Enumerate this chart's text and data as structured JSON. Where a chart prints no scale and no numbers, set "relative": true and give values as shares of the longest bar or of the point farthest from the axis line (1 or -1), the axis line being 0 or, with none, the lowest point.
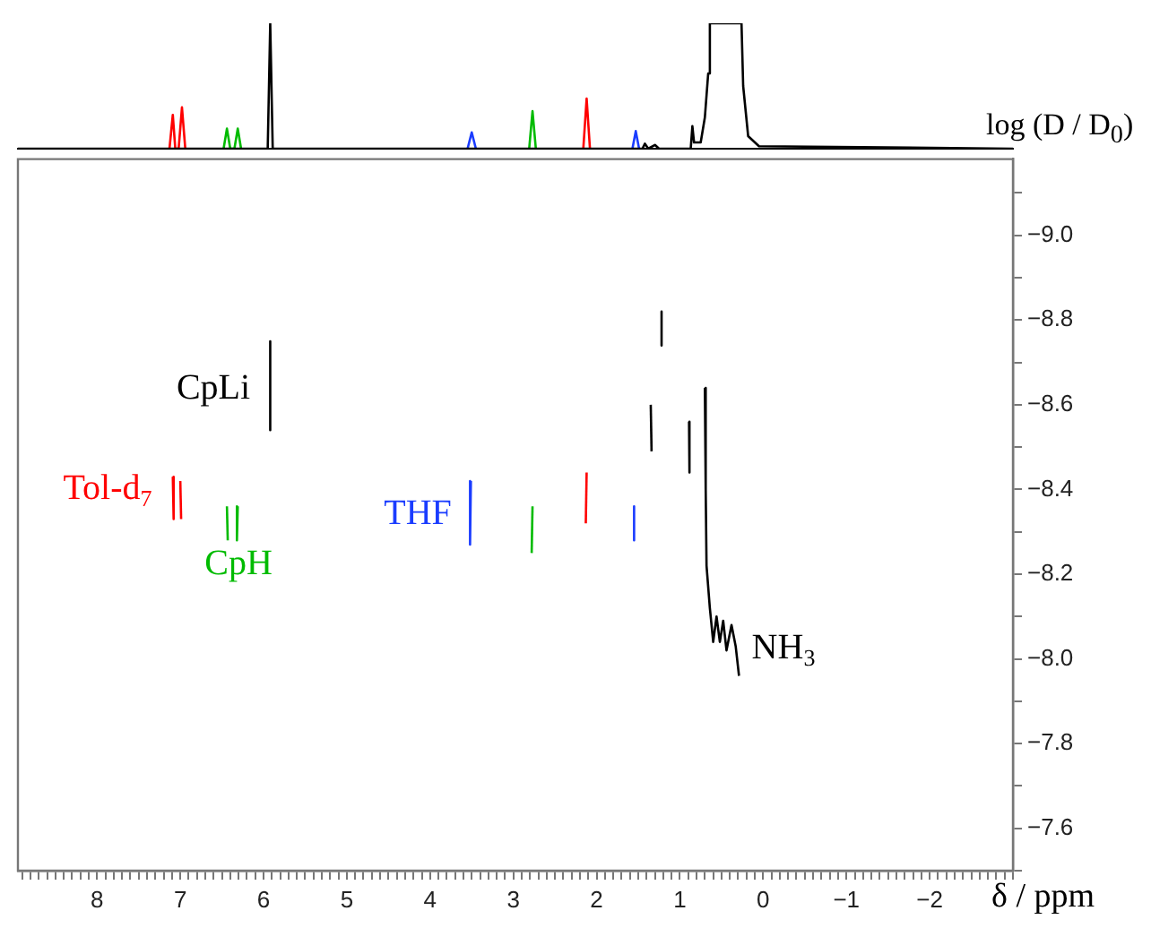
{
  "chart_data": [
    {
      "type": "line",
      "relative": true,
      "tick_labels": false,
      "legend": false,
      "grid": false,
      "xlim": [
        8.95,
        -3.0
      ],
      "series": [
        {
          "color": "#000000",
          "x": [
            8.95,
            5.95,
            5.92,
            5.89,
            1.45,
            1.42,
            1.38,
            1.3,
            1.25,
            0.87,
            0.85,
            0.83,
            0.75,
            0.7,
            0.66,
            0.64,
            0.26,
            0.24,
            0.18,
            0.05,
            -3.0
          ],
          "values": [
            0,
            0,
            1,
            0,
            0,
            0.04,
            0,
            0.03,
            0,
            0,
            0.18,
            0.05,
            0.05,
            0.25,
            0.6,
            1,
            1,
            0.5,
            0.1,
            0.02,
            0
          ]
        },
        {
          "color": "#ff0000",
          "x": [
            7.13,
            7.09,
            7.06,
            7.02,
            6.98,
            6.94
          ],
          "values": [
            0,
            0.27,
            0,
            0,
            0.33,
            0
          ]
        },
        {
          "color": "#ff0000",
          "x": [
            2.16,
            2.12,
            2.08
          ],
          "values": [
            0,
            0.4,
            0
          ]
        },
        {
          "color": "#00bb00",
          "x": [
            6.48,
            6.44,
            6.4,
            6.35,
            6.31,
            6.27
          ],
          "values": [
            0,
            0.16,
            0,
            0,
            0.16,
            0
          ]
        },
        {
          "color": "#00bb00",
          "x": [
            2.81,
            2.77,
            2.73
          ],
          "values": [
            0,
            0.3,
            0
          ]
        },
        {
          "color": "#1a3cff",
          "x": [
            3.55,
            3.5,
            3.45
          ],
          "values": [
            0,
            0.13,
            0
          ]
        },
        {
          "color": "#1a3cff",
          "x": [
            1.57,
            1.53,
            1.49
          ],
          "values": [
            0,
            0.14,
            0
          ]
        }
      ]
    },
    {
      "type": "line",
      "legend": false,
      "grid": false,
      "marker": "none",
      "xlabel": "δ / ppm",
      "ylabel": "log (D / D$_{0}$)",
      "xlim": [
        8.95,
        -3.0
      ],
      "ylim": [
        -7.5,
        -9.18
      ],
      "xticks": [
        {
          "value": 8.9,
          "label": null
        },
        {
          "value": 8.8,
          "label": null
        },
        {
          "value": 8.7,
          "label": null
        },
        {
          "value": 8.6,
          "label": null
        },
        {
          "value": 8.5,
          "label": null
        },
        {
          "value": 8.4,
          "label": null
        },
        {
          "value": 8.3,
          "label": null
        },
        {
          "value": 8.2,
          "label": null
        },
        {
          "value": 8.1,
          "label": null
        },
        8,
        {
          "value": 7.9,
          "label": null
        },
        {
          "value": 7.8,
          "label": null
        },
        {
          "value": 7.7,
          "label": null
        },
        {
          "value": 7.6,
          "label": null
        },
        {
          "value": 7.5,
          "label": null
        },
        {
          "value": 7.4,
          "label": null
        },
        {
          "value": 7.3,
          "label": null
        },
        {
          "value": 7.2,
          "label": null
        },
        {
          "value": 7.1,
          "label": null
        },
        7,
        {
          "value": 6.9,
          "label": null
        },
        {
          "value": 6.8,
          "label": null
        },
        {
          "value": 6.7,
          "label": null
        },
        {
          "value": 6.6,
          "label": null
        },
        {
          "value": 6.5,
          "label": null
        },
        {
          "value": 6.4,
          "label": null
        },
        {
          "value": 6.3,
          "label": null
        },
        {
          "value": 6.2,
          "label": null
        },
        {
          "value": 6.1,
          "label": null
        },
        6,
        {
          "value": 5.9,
          "label": null
        },
        {
          "value": 5.8,
          "label": null
        },
        {
          "value": 5.7,
          "label": null
        },
        {
          "value": 5.6,
          "label": null
        },
        {
          "value": 5.5,
          "label": null
        },
        {
          "value": 5.4,
          "label": null
        },
        {
          "value": 5.3,
          "label": null
        },
        {
          "value": 5.2,
          "label": null
        },
        {
          "value": 5.1,
          "label": null
        },
        5,
        {
          "value": 4.9,
          "label": null
        },
        {
          "value": 4.8,
          "label": null
        },
        {
          "value": 4.7,
          "label": null
        },
        {
          "value": 4.6,
          "label": null
        },
        {
          "value": 4.5,
          "label": null
        },
        {
          "value": 4.4,
          "label": null
        },
        {
          "value": 4.3,
          "label": null
        },
        {
          "value": 4.2,
          "label": null
        },
        {
          "value": 4.1,
          "label": null
        },
        4,
        {
          "value": 3.9,
          "label": null
        },
        {
          "value": 3.8,
          "label": null
        },
        {
          "value": 3.7,
          "label": null
        },
        {
          "value": 3.6,
          "label": null
        },
        {
          "value": 3.5,
          "label": null
        },
        {
          "value": 3.4,
          "label": null
        },
        {
          "value": 3.3,
          "label": null
        },
        {
          "value": 3.2,
          "label": null
        },
        {
          "value": 3.1,
          "label": null
        },
        3,
        {
          "value": 2.9,
          "label": null
        },
        {
          "value": 2.8,
          "label": null
        },
        {
          "value": 2.7,
          "label": null
        },
        {
          "value": 2.6,
          "label": null
        },
        {
          "value": 2.5,
          "label": null
        },
        {
          "value": 2.4,
          "label": null
        },
        {
          "value": 2.3,
          "label": null
        },
        {
          "value": 2.2,
          "label": null
        },
        {
          "value": 2.1,
          "label": null
        },
        2,
        {
          "value": 1.9,
          "label": null
        },
        {
          "value": 1.8,
          "label": null
        },
        {
          "value": 1.7,
          "label": null
        },
        {
          "value": 1.6,
          "label": null
        },
        {
          "value": 1.5,
          "label": null
        },
        {
          "value": 1.4,
          "label": null
        },
        {
          "value": 1.3,
          "label": null
        },
        {
          "value": 1.2,
          "label": null
        },
        {
          "value": 1.1,
          "label": null
        },
        1,
        {
          "value": 0.9,
          "label": null
        },
        {
          "value": 0.8,
          "label": null
        },
        {
          "value": 0.7,
          "label": null
        },
        {
          "value": 0.6,
          "label": null
        },
        {
          "value": 0.5,
          "label": null
        },
        {
          "value": 0.4,
          "label": null
        },
        {
          "value": 0.3,
          "label": null
        },
        {
          "value": 0.2,
          "label": null
        },
        {
          "value": 0.1,
          "label": null
        },
        0,
        {
          "value": -0.1,
          "label": null
        },
        {
          "value": -0.2,
          "label": null
        },
        {
          "value": -0.3,
          "label": null
        },
        {
          "value": -0.4,
          "label": null
        },
        {
          "value": -0.5,
          "label": null
        },
        {
          "value": -0.6,
          "label": null
        },
        {
          "value": -0.7,
          "label": null
        },
        {
          "value": -0.8,
          "label": null
        },
        {
          "value": -0.9,
          "label": null
        },
        {
          "value": -1,
          "label": "−1"
        },
        {
          "value": -1.1,
          "label": null
        },
        {
          "value": -1.2,
          "label": null
        },
        {
          "value": -1.3,
          "label": null
        },
        {
          "value": -1.4,
          "label": null
        },
        {
          "value": -1.5,
          "label": null
        },
        {
          "value": -1.6,
          "label": null
        },
        {
          "value": -1.7,
          "label": null
        },
        {
          "value": -1.8,
          "label": null
        },
        {
          "value": -1.9,
          "label": null
        },
        {
          "value": -2,
          "label": "−2"
        },
        {
          "value": -2.1,
          "label": null
        },
        {
          "value": -2.2,
          "label": null
        },
        {
          "value": -2.3,
          "label": null
        },
        {
          "value": -2.4,
          "label": null
        },
        {
          "value": -2.5,
          "label": null
        },
        {
          "value": -2.6,
          "label": null
        },
        {
          "value": -2.7,
          "label": null
        },
        {
          "value": -2.8,
          "label": null
        },
        {
          "value": -2.9,
          "label": null
        },
        {
          "value": -3,
          "label": null
        }
      ],
      "yticks": [
        {
          "value": -9.1,
          "label": null
        },
        {
          "value": -9.0,
          "label": "−9.0"
        },
        {
          "value": -8.9,
          "label": null
        },
        {
          "value": -8.8,
          "label": "−8.8"
        },
        {
          "value": -8.7,
          "label": null
        },
        {
          "value": -8.6,
          "label": "−8.6"
        },
        {
          "value": -8.5,
          "label": null
        },
        {
          "value": -8.4,
          "label": "−8.4"
        },
        {
          "value": -8.3,
          "label": null
        },
        {
          "value": -8.2,
          "label": "−8.2"
        },
        {
          "value": -8.1,
          "label": null
        },
        {
          "value": -8.0,
          "label": "−8.0"
        },
        {
          "value": -7.9,
          "label": null
        },
        {
          "value": -7.8,
          "label": "−7.8"
        },
        {
          "value": -7.7,
          "label": null
        },
        {
          "value": -7.6,
          "label": "−7.6"
        },
        {
          "value": -7.5,
          "label": null
        }
      ],
      "series": [
        {
          "color": "#000000",
          "x": [
            5.92,
            5.92
          ],
          "values": [
            -8.75,
            -8.54
          ]
        },
        {
          "color": "#ff0000",
          "x": [
            7.09,
            7.08
          ],
          "values": [
            -8.43,
            -8.33
          ]
        },
        {
          "color": "#ff0000",
          "x": [
            7.0,
            6.99
          ],
          "values": [
            -8.42,
            -8.33
          ]
        },
        {
          "color": "#00bb00",
          "x": [
            6.44,
            6.43
          ],
          "values": [
            -8.36,
            -8.28
          ]
        },
        {
          "color": "#00bb00",
          "x": [
            6.31,
            6.32
          ],
          "values": [
            -8.36,
            -8.28
          ]
        },
        {
          "color": "#1a3cff",
          "x": [
            3.51,
            3.52
          ],
          "values": [
            -8.42,
            -8.27
          ]
        },
        {
          "color": "#00bb00",
          "x": [
            2.77,
            2.78
          ],
          "values": [
            -8.36,
            -8.25
          ]
        },
        {
          "color": "#ff0000",
          "x": [
            2.12,
            2.13
          ],
          "values": [
            -8.44,
            -8.32
          ]
        },
        {
          "color": "#1a3cff",
          "x": [
            1.55,
            1.55
          ],
          "values": [
            -8.36,
            -8.28
          ]
        },
        {
          "color": "#000000",
          "x": [
            1.22,
            1.22
          ],
          "values": [
            -8.82,
            -8.74
          ]
        },
        {
          "color": "#000000",
          "x": [
            1.35,
            1.34
          ],
          "values": [
            -8.6,
            -8.49
          ]
        },
        {
          "color": "#000000",
          "x": [
            0.89,
            0.88,
            0.89
          ],
          "values": [
            -8.56,
            -8.5,
            -8.44
          ]
        },
        {
          "color": "#000000",
          "x": [
            0.7,
            0.69,
            0.68,
            0.64,
            0.6,
            0.56,
            0.52,
            0.48,
            0.44,
            0.38,
            0.33,
            0.29
          ],
          "values": [
            -8.64,
            -8.4,
            -8.22,
            -8.12,
            -8.04,
            -8.1,
            -8.04,
            -8.09,
            -8.02,
            -8.08,
            -8.03,
            -7.96
          ]
        }
      ],
      "annotations": [
        "CpLi",
        "Tol-d$_{7}$",
        "CpH",
        "THF",
        "NH$_{3}$"
      ]
    }
  ]
}
